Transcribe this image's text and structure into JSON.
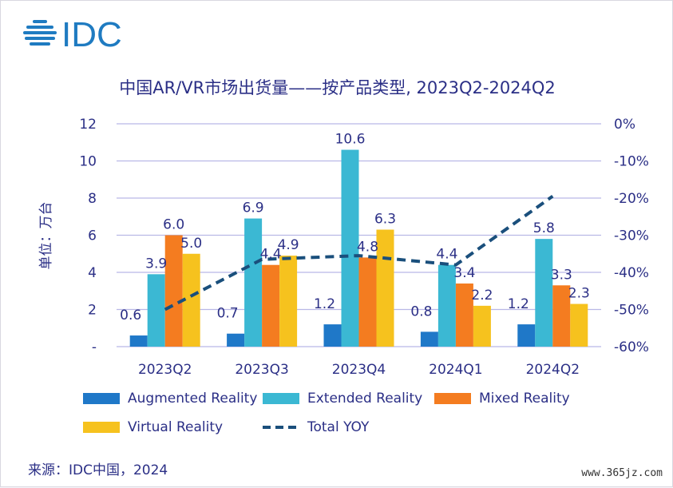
{
  "logo": {
    "text": "IDC",
    "color": "#1f7bc1"
  },
  "source": "来源：IDC中国，2024",
  "watermark": "www.365jz.com",
  "legend": [
    {
      "label": "Augmented Reality",
      "color": "#1f78c8",
      "type": "bar"
    },
    {
      "label": "Extended Reality",
      "color": "#3bb8d3",
      "type": "bar"
    },
    {
      "label": "Mixed Reality",
      "color": "#f47c20",
      "type": "bar"
    },
    {
      "label": "Virtual Reality",
      "color": "#f6c21e",
      "type": "bar"
    },
    {
      "label": "Total YOY",
      "color": "#1a4f7c",
      "type": "dash"
    }
  ],
  "chart_data": {
    "type": "bar",
    "title": "中国AR/VR市场出货量——按产品类型, 2023Q2-2024Q2",
    "ylabel": "单位：万台",
    "categories": [
      "2023Q2",
      "2023Q3",
      "2023Q4",
      "2024Q1",
      "2024Q2"
    ],
    "ylim": [
      0,
      12
    ],
    "y_ticks": [
      "-",
      "2",
      "4",
      "6",
      "8",
      "10",
      "12"
    ],
    "y2lim": [
      -60,
      0
    ],
    "y2_ticks": [
      "-60%",
      "-50%",
      "-40%",
      "-30%",
      "-20%",
      "-10%",
      "0%"
    ],
    "series": [
      {
        "name": "Augmented Reality",
        "values": [
          0.6,
          0.7,
          1.2,
          0.8,
          1.2
        ],
        "labels": [
          "0.6",
          "0.7",
          "1.2",
          "0.8",
          "1.2"
        ],
        "color": "#1f78c8"
      },
      {
        "name": "Extended Reality",
        "values": [
          3.9,
          6.9,
          10.6,
          4.4,
          5.8
        ],
        "labels": [
          "3.9",
          "6.9",
          "10.6",
          "4.4",
          "5.8"
        ],
        "color": "#3bb8d3"
      },
      {
        "name": "Mixed Reality",
        "values": [
          6.0,
          4.4,
          4.8,
          3.4,
          3.3
        ],
        "labels": [
          "6.0",
          "4.4",
          "4.8",
          "3.4",
          "3.3"
        ],
        "color": "#f47c20"
      },
      {
        "name": "Virtual Reality",
        "values": [
          5.0,
          4.9,
          6.3,
          2.2,
          2.3
        ],
        "labels": [
          "5.0",
          "4.9",
          "6.3",
          "2.2",
          "2.3"
        ],
        "color": "#f6c21e"
      }
    ],
    "line": {
      "name": "Total YOY",
      "axis": "right",
      "values": [
        -50,
        -36.5,
        -35.5,
        -38,
        -19.5
      ],
      "color": "#1a4f7c",
      "style": "dashed"
    },
    "grid": "horizontal",
    "legend_position": "bottom"
  }
}
